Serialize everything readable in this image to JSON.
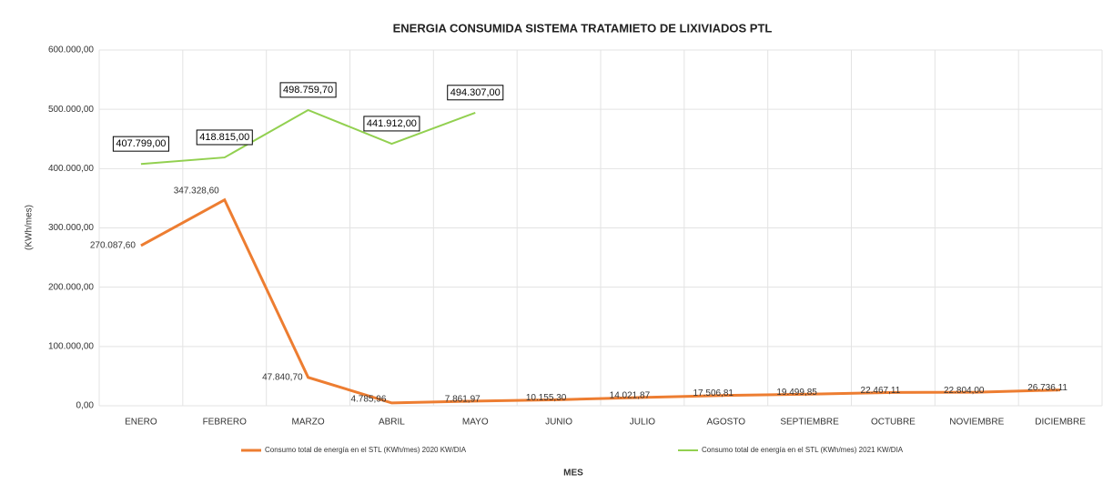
{
  "chart_data": {
    "type": "line",
    "title": "ENERGIA CONSUMIDA SISTEMA TRATAMIETO DE LIXIVIADOS PTL",
    "y_label": "(KWh/mes)",
    "x_label": "MES",
    "categories": [
      "ENERO",
      "FEBRERO",
      "MARZO",
      "ABRIL",
      "MAYO",
      "JUNIO",
      "JULIO",
      "AGOSTO",
      "SEPTIEMBRE",
      "OCTUBRE",
      "NOVIEMBRE",
      "DICIEMBRE"
    ],
    "series": [
      {
        "name": "Consumo total de energía en el STL (KWh/mes) 2020 KW/DIA",
        "color": "#ed7d31",
        "values": [
          270087.6,
          347328.6,
          47840.7,
          4785.96,
          7861.97,
          10155.3,
          14021.87,
          17506.81,
          19499.85,
          22467.11,
          22804.0,
          26736.11
        ],
        "value_labels": [
          "270.087,60",
          "347.328,60",
          "47.840,70",
          "4.785,96",
          "7.861,97",
          "10.155,30",
          "14.021,87",
          "17.506,81",
          "19.499,85",
          "22.467,11",
          "22.804,00",
          "26.736,11"
        ]
      },
      {
        "name": "Consumo total de energía en el STL (KWh/mes) 2021 KW/DIA",
        "color": "#92d050",
        "values": [
          407799,
          418815,
          498759.7,
          441912,
          494307,
          null,
          null,
          null,
          null,
          null,
          null,
          null
        ],
        "value_labels": [
          "407.799,00",
          "418.815,00",
          "498.759,70",
          "441.912,00",
          "494.307,00",
          null,
          null,
          null,
          null,
          null,
          null,
          null
        ]
      }
    ],
    "ylim": [
      0,
      600000
    ],
    "yticks": [
      {
        "value": 0,
        "label": "0,00"
      },
      {
        "value": 100000,
        "label": "100.000,00"
      },
      {
        "value": 200000,
        "label": "200.000,00"
      },
      {
        "value": 300000,
        "label": "300.000,00"
      },
      {
        "value": 400000,
        "label": "400.000,00"
      },
      {
        "value": 500000,
        "label": "500.000,00"
      },
      {
        "value": 600000,
        "label": "600.000,00"
      }
    ],
    "grid": true,
    "legend": "bottom"
  }
}
